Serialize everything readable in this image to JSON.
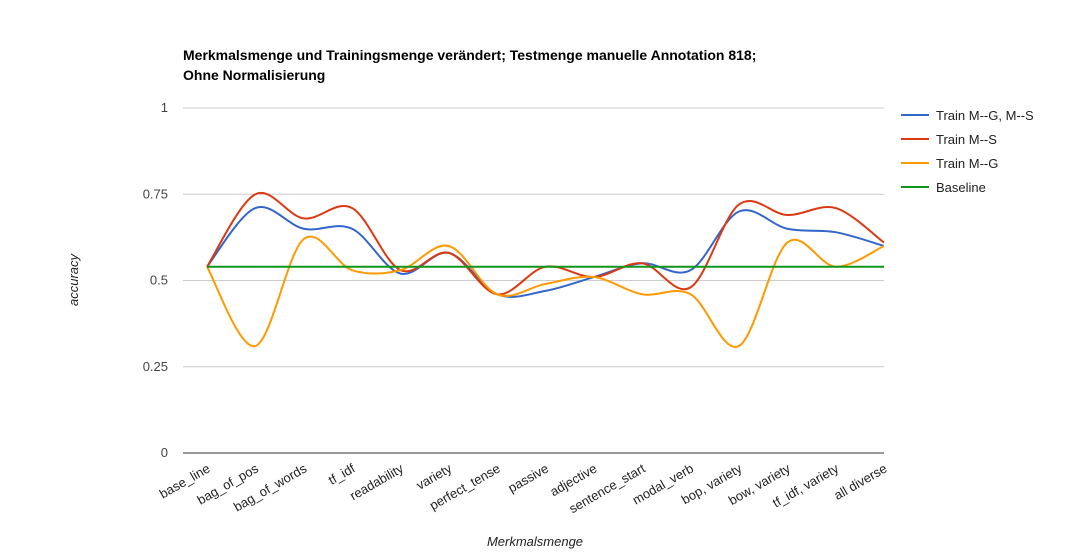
{
  "chart_data": {
    "type": "line",
    "title_lines": [
      "Merkmalsmenge und Trainingsmenge verändert; Testmenge manuelle Annotation 818;",
      "Ohne Normalisierung"
    ],
    "xlabel": "Merkmalsmenge",
    "ylabel": "accuracy",
    "ylim": [
      0,
      1
    ],
    "y_ticks": [
      {
        "value": 0,
        "label": "0"
      },
      {
        "value": 0.25,
        "label": "0.25"
      },
      {
        "value": 0.5,
        "label": "0.5"
      },
      {
        "value": 0.75,
        "label": "0.75"
      },
      {
        "value": 1,
        "label": "1"
      }
    ],
    "grid": true,
    "smooth": true,
    "legend_position": "right",
    "categories": [
      "base_line",
      "bag_of_pos",
      "bag_of_words",
      "tf_idf",
      "readability",
      "variety",
      "perfect_tense",
      "passive",
      "adjective",
      "sentence_start",
      "modal_verb",
      "bop, variety",
      "bow, variety",
      "tf_idf, variety",
      "all diverse"
    ],
    "series": [
      {
        "name": "Train M--G, M--S",
        "color": "#3366cc",
        "values": [
          0.54,
          0.71,
          0.65,
          0.65,
          0.52,
          0.58,
          0.46,
          0.47,
          0.51,
          0.55,
          0.53,
          0.7,
          0.65,
          0.64,
          0.6
        ]
      },
      {
        "name": "Train M--S",
        "color": "#dc3912",
        "values": [
          0.54,
          0.75,
          0.68,
          0.71,
          0.53,
          0.58,
          0.46,
          0.54,
          0.51,
          0.55,
          0.48,
          0.72,
          0.69,
          0.71,
          0.61
        ]
      },
      {
        "name": "Train M--G",
        "color": "#ff9900",
        "values": [
          0.54,
          0.31,
          0.62,
          0.53,
          0.53,
          0.6,
          0.46,
          0.49,
          0.51,
          0.46,
          0.46,
          0.31,
          0.61,
          0.54,
          0.6
        ]
      },
      {
        "name": "Baseline",
        "color": "#109618",
        "values": [
          0.54,
          0.54,
          0.54,
          0.54,
          0.54,
          0.54,
          0.54,
          0.54,
          0.54,
          0.54,
          0.54,
          0.54,
          0.54,
          0.54,
          0.54
        ]
      }
    ]
  }
}
